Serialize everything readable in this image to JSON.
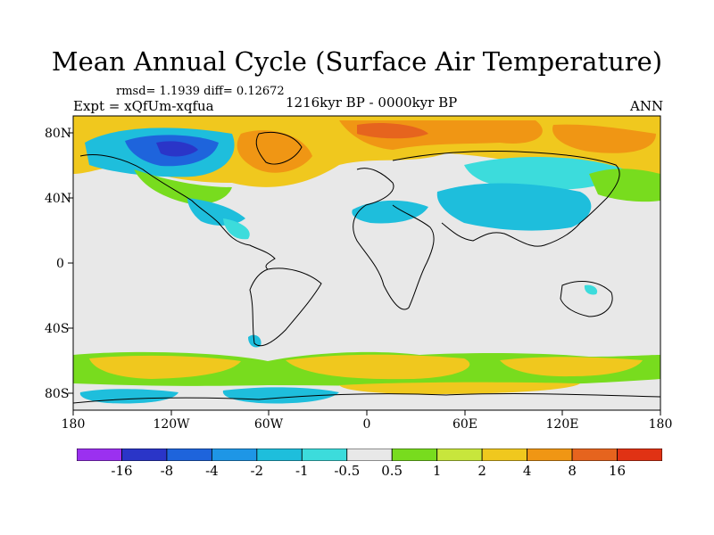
{
  "title": "Mean Annual Cycle (Surface Air Temperature)",
  "stats": "rmsd= 1.1939 diff= 0.12672",
  "experiment": "Expt = xQfUm-xqfua",
  "period": "1216kyr BP - 0000kyr BP",
  "season": "ANN",
  "lat_labels": [
    "80N",
    "40N",
    "0",
    "40S",
    "80S"
  ],
  "lon_labels": [
    "180",
    "120W",
    "60W",
    "0",
    "60E",
    "120E",
    "180"
  ],
  "colorbar": {
    "labels": [
      "-16",
      "-8",
      "-4",
      "-2",
      "-1",
      "-0.5",
      "0.5",
      "1",
      "2",
      "4",
      "8",
      "16"
    ],
    "colors": [
      "#9b30f0",
      "#2a35c8",
      "#1e64dc",
      "#1e96e6",
      "#1ebedc",
      "#3cdcdc",
      "#e8e8e8",
      "#78dc1e",
      "#c8e63c",
      "#f0c81e",
      "#f09614",
      "#e6641e",
      "#e03214"
    ]
  }
}
